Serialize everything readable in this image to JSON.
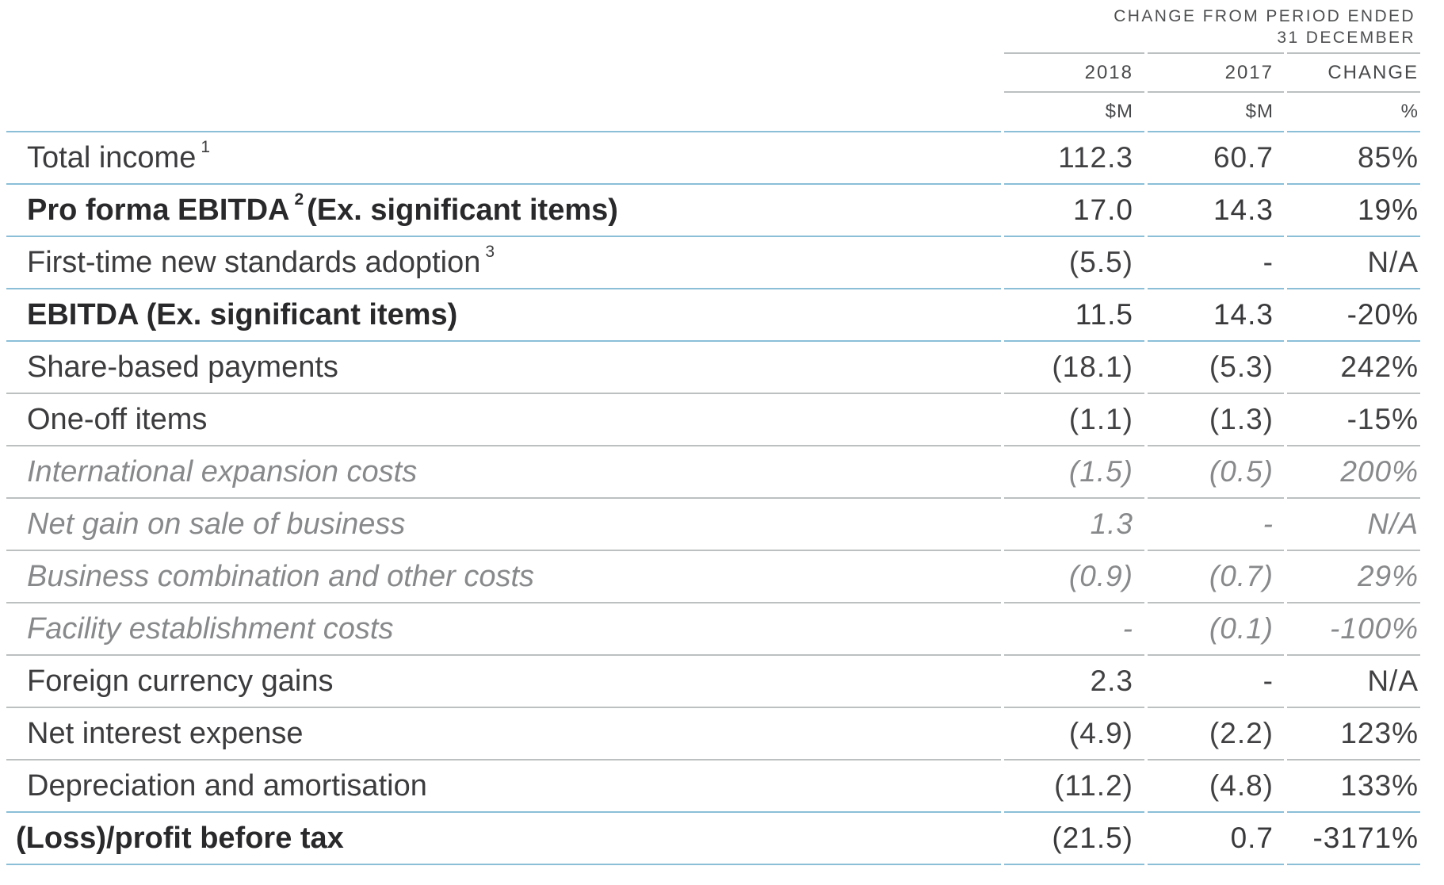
{
  "header": {
    "period_line1": "CHANGE FROM PERIOD ENDED",
    "period_line2": "31 DECEMBER",
    "col_2018": "2018",
    "col_2017": "2017",
    "col_change": "CHANGE",
    "unit_2018": "$M",
    "unit_2017": "$M",
    "unit_change": "%"
  },
  "colors": {
    "rule_blue": "#8bbfd8",
    "rule_gray": "#bcc0c0"
  },
  "rows": [
    {
      "label": "Total income",
      "sup": "1",
      "post": "",
      "v18": "112.3",
      "v17": "60.7",
      "chg": "85%"
    },
    {
      "label": "Pro forma EBITDA",
      "sup": "2",
      "post": "(Ex. significant items)",
      "v18": "17.0",
      "v17": "14.3",
      "chg": "19%"
    },
    {
      "label": "First-time new standards adoption",
      "sup": "3",
      "post": "",
      "v18": "(5.5)",
      "v17": "-",
      "chg": "N/A"
    },
    {
      "label": "EBITDA (Ex. significant items)",
      "sup": "",
      "post": "",
      "v18": "11.5",
      "v17": "14.3",
      "chg": "-20%"
    },
    {
      "label": "Share-based payments",
      "sup": "",
      "post": "",
      "v18": "(18.1)",
      "v17": "(5.3)",
      "chg": "242%"
    },
    {
      "label": "One-off items",
      "sup": "",
      "post": "",
      "v18": "(1.1)",
      "v17": "(1.3)",
      "chg": "-15%"
    },
    {
      "label": "International expansion costs",
      "sup": "",
      "post": "",
      "v18": "(1.5)",
      "v17": "(0.5)",
      "chg": "200%"
    },
    {
      "label": "Net gain on sale of business",
      "sup": "",
      "post": "",
      "v18": "1.3",
      "v17": "-",
      "chg": "N/A"
    },
    {
      "label": "Business combination and other costs",
      "sup": "",
      "post": "",
      "v18": "(0.9)",
      "v17": "(0.7)",
      "chg": "29%"
    },
    {
      "label": "Facility establishment costs",
      "sup": "",
      "post": "",
      "v18": "-",
      "v17": "(0.1)",
      "chg": "-100%"
    },
    {
      "label": "Foreign currency gains",
      "sup": "",
      "post": "",
      "v18": "2.3",
      "v17": "-",
      "chg": "N/A"
    },
    {
      "label": "Net interest expense",
      "sup": "",
      "post": "",
      "v18": "(4.9)",
      "v17": "(2.2)",
      "chg": "123%"
    },
    {
      "label": "Depreciation and amortisation",
      "sup": "",
      "post": "",
      "v18": "(11.2)",
      "v17": "(4.8)",
      "chg": "133%"
    },
    {
      "label": "(Loss)/profit before tax",
      "sup": "",
      "post": "",
      "v18": "(21.5)",
      "v17": "0.7",
      "chg": "-3171%"
    }
  ]
}
